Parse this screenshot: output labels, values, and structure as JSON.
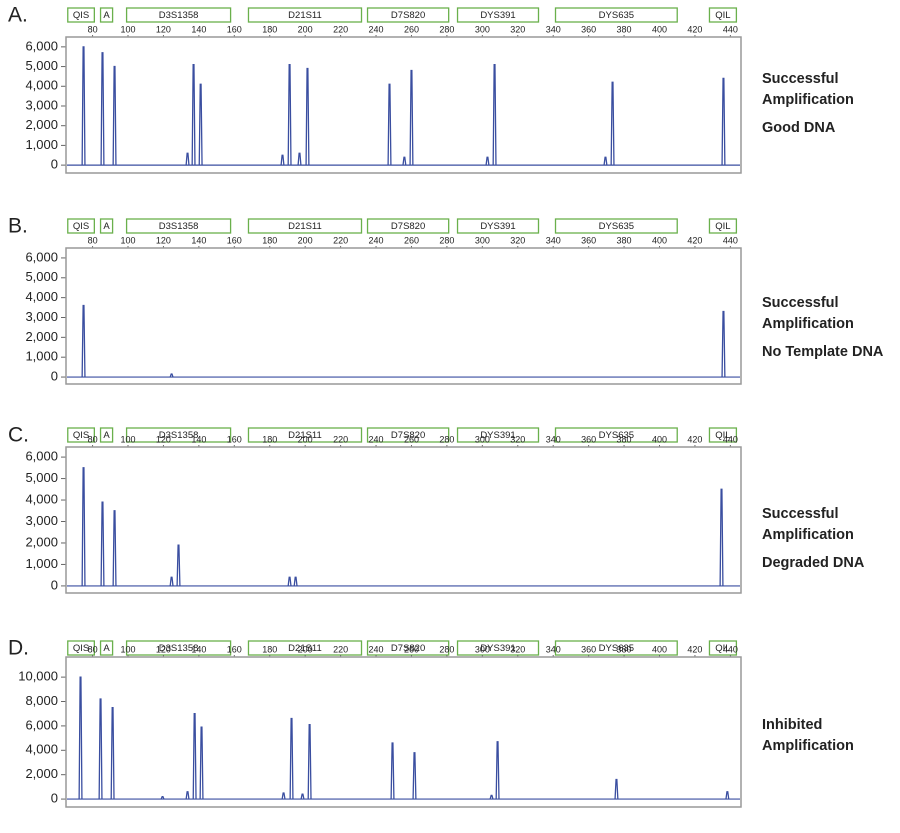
{
  "chart_data": [
    {
      "type": "line",
      "panel": "A.",
      "annotations": [
        "Successful",
        "Amplification",
        "Good DNA"
      ],
      "markers": [
        {
          "label": "QIS",
          "start": 66,
          "end": 81
        },
        {
          "label": "A",
          "start": 84.5,
          "end": 91.3
        },
        {
          "label": "D3S1358",
          "start": 99.2,
          "end": 157.9
        },
        {
          "label": "D21S11",
          "start": 168,
          "end": 231.8
        },
        {
          "label": "D7S820",
          "start": 235.2,
          "end": 281
        },
        {
          "label": "DYS391",
          "start": 286,
          "end": 331.7
        },
        {
          "label": "DYS635",
          "start": 341.3,
          "end": 410
        },
        {
          "label": "QIL",
          "start": 428.2,
          "end": 443.4
        }
      ],
      "x": [
        74.9,
        85.6,
        92.4,
        133.6,
        137,
        141,
        187.2,
        191.2,
        196.8,
        201.3,
        247.6,
        256,
        260,
        302.9,
        306.9,
        369.5,
        373.5,
        436.1
      ],
      "values": [
        6000,
        5700,
        5000,
        600,
        5100,
        4100,
        500,
        5100,
        600,
        4900,
        4100,
        400,
        4800,
        400,
        5100,
        400,
        4200,
        4400
      ],
      "color": "#3a4ea0",
      "xlim": [
        65,
        446
      ],
      "ylim": [
        -400,
        6500
      ],
      "xticks": [
        80,
        100,
        120,
        140,
        160,
        180,
        200,
        220,
        240,
        260,
        280,
        300,
        320,
        340,
        360,
        380,
        400,
        420,
        440
      ],
      "yticks": [
        {
          "value": 0,
          "label": "0"
        },
        {
          "value": 1000,
          "label": "1,000"
        },
        {
          "value": 2000,
          "label": "2,000"
        },
        {
          "value": 3000,
          "label": "3,000"
        },
        {
          "value": 4000,
          "label": "4,000"
        },
        {
          "value": 5000,
          "label": "5,000"
        },
        {
          "value": 6000,
          "label": "6,000"
        }
      ]
    },
    {
      "type": "line",
      "panel": "B.",
      "annotations": [
        "Successful",
        "Amplification",
        "No Template DNA"
      ],
      "markers": [
        {
          "label": "QIS",
          "start": 66,
          "end": 81
        },
        {
          "label": "A",
          "start": 84.5,
          "end": 91.3
        },
        {
          "label": "D3S1358",
          "start": 99.2,
          "end": 157.9
        },
        {
          "label": "D21S11",
          "start": 168,
          "end": 231.8
        },
        {
          "label": "D7S820",
          "start": 235.2,
          "end": 281
        },
        {
          "label": "DYS391",
          "start": 286,
          "end": 331.7
        },
        {
          "label": "DYS635",
          "start": 341.3,
          "end": 410
        },
        {
          "label": "QIL",
          "start": 428.2,
          "end": 443.4
        }
      ],
      "x": [
        74.9,
        124.6,
        436.1
      ],
      "values": [
        3600,
        150,
        3300
      ],
      "color": "#3a4ea0",
      "xlim": [
        65,
        446
      ],
      "ylim": [
        -350,
        6500
      ],
      "xticks": [
        80,
        100,
        120,
        140,
        160,
        180,
        200,
        220,
        240,
        260,
        280,
        300,
        320,
        340,
        360,
        380,
        400,
        420,
        440
      ],
      "yticks": [
        {
          "value": 0,
          "label": "0"
        },
        {
          "value": 1000,
          "label": "1,000"
        },
        {
          "value": 2000,
          "label": "2,000"
        },
        {
          "value": 3000,
          "label": "3,000"
        },
        {
          "value": 4000,
          "label": "4,000"
        },
        {
          "value": 5000,
          "label": "5,000"
        },
        {
          "value": 6000,
          "label": "6,000"
        }
      ]
    },
    {
      "type": "line",
      "panel": "C.",
      "annotations": [
        "Successful",
        "Amplification",
        "Degraded DNA"
      ],
      "markers": [
        {
          "label": "QIS",
          "start": 66,
          "end": 81
        },
        {
          "label": "A",
          "start": 84.5,
          "end": 91.3
        },
        {
          "label": "D3S1358",
          "start": 99.2,
          "end": 157.9
        },
        {
          "label": "D21S11",
          "start": 168,
          "end": 231.8
        },
        {
          "label": "D7S820",
          "start": 235.2,
          "end": 281
        },
        {
          "label": "DYS391",
          "start": 286,
          "end": 331.7
        },
        {
          "label": "DYS635",
          "start": 341.3,
          "end": 410
        },
        {
          "label": "QIL",
          "start": 428.2,
          "end": 443.4
        }
      ],
      "x": [
        74.9,
        85.6,
        92.4,
        124.6,
        128.5,
        191.2,
        194.6,
        435
      ],
      "values": [
        5500,
        3900,
        3500,
        400,
        1900,
        400,
        400,
        4500
      ],
      "color": "#3a4ea0",
      "xlim": [
        65,
        446
      ],
      "ylim": [
        -330,
        6470
      ],
      "xticks": [
        80,
        100,
        120,
        140,
        160,
        180,
        200,
        220,
        240,
        260,
        280,
        300,
        320,
        340,
        360,
        380,
        400,
        420,
        440
      ],
      "yticks": [
        {
          "value": 0,
          "label": "0"
        },
        {
          "value": 1000,
          "label": "1,000"
        },
        {
          "value": 2000,
          "label": "2,000"
        },
        {
          "value": 3000,
          "label": "3,000"
        },
        {
          "value": 4000,
          "label": "4,000"
        },
        {
          "value": 5000,
          "label": "5,000"
        },
        {
          "value": 6000,
          "label": "6,000"
        }
      ]
    },
    {
      "type": "line",
      "panel": "D.",
      "annotations": [
        "Inhibited",
        "Amplification"
      ],
      "markers": [
        {
          "label": "QIS",
          "start": 66,
          "end": 81
        },
        {
          "label": "A",
          "start": 84.5,
          "end": 91.3
        },
        {
          "label": "D3S1358",
          "start": 99.2,
          "end": 157.9
        },
        {
          "label": "D21S11",
          "start": 168,
          "end": 231.8
        },
        {
          "label": "D7S820",
          "start": 235.2,
          "end": 281
        },
        {
          "label": "DYS391",
          "start": 286,
          "end": 331.7
        },
        {
          "label": "DYS635",
          "start": 341.3,
          "end": 410
        },
        {
          "label": "QIL",
          "start": 428.2,
          "end": 443.4
        }
      ],
      "x": [
        73.2,
        84.5,
        91.3,
        119.5,
        133.6,
        137.6,
        141.5,
        187.8,
        192.3,
        198.5,
        202.5,
        249.3,
        261.7,
        305.2,
        308.6,
        375.7,
        438.3
      ],
      "values": [
        10000,
        8200,
        7500,
        200,
        600,
        7000,
        5900,
        500,
        6600,
        400,
        6100,
        4600,
        3800,
        300,
        4700,
        1600,
        600
      ],
      "color": "#3a4ea0",
      "xlim": [
        65,
        446
      ],
      "ylim": [
        -650,
        11650
      ],
      "xticks": [
        80,
        100,
        120,
        140,
        160,
        180,
        200,
        220,
        240,
        260,
        280,
        300,
        320,
        340,
        360,
        380,
        400,
        420,
        440
      ],
      "yticks": [
        {
          "value": 0,
          "label": "0"
        },
        {
          "value": 2000,
          "label": "2,000"
        },
        {
          "value": 4000,
          "label": "4,000"
        },
        {
          "value": 6000,
          "label": "6,000"
        },
        {
          "value": 8000,
          "label": "8,000"
        },
        {
          "value": 10000,
          "label": "10,000"
        }
      ]
    }
  ]
}
